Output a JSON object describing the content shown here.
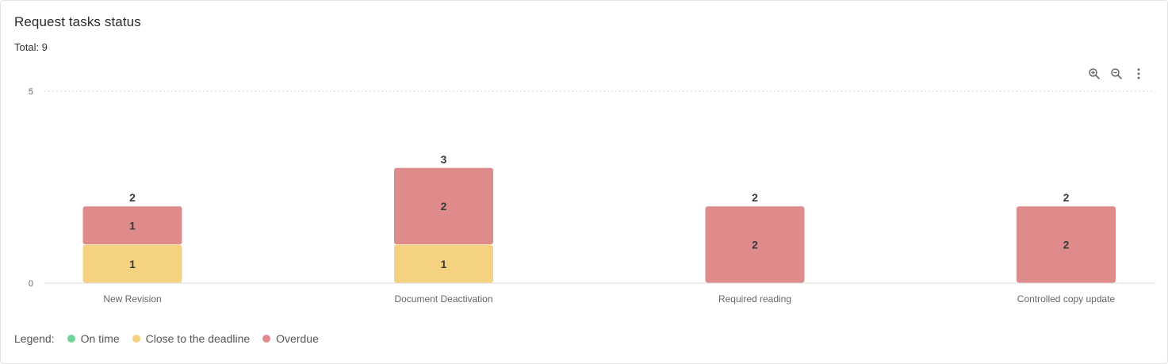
{
  "card": {
    "title": "Request tasks status",
    "total": "Total: 9"
  },
  "toolbar": {
    "zoom_in_icon": "zoom-in-icon",
    "zoom_out_icon": "zoom-out-icon",
    "menu_icon": "more-vert-icon"
  },
  "legend": {
    "title": "Legend:",
    "items": [
      {
        "label": "On time",
        "color": "#6fd49b"
      },
      {
        "label": "Close to the deadline",
        "color": "#f5d27f"
      },
      {
        "label": "Overdue",
        "color": "#e08b8b"
      }
    ]
  },
  "chart_data": {
    "type": "bar",
    "stacked": true,
    "categories": [
      "New Revision",
      "Document Deactivation",
      "Required reading",
      "Controlled copy update"
    ],
    "series": [
      {
        "name": "On time",
        "color": "#6fd49b",
        "values": [
          0,
          0,
          0,
          0
        ]
      },
      {
        "name": "Close to the deadline",
        "color": "#f5d27f",
        "values": [
          1,
          1,
          0,
          0
        ]
      },
      {
        "name": "Overdue",
        "color": "#e08b8b",
        "values": [
          1,
          2,
          2,
          2
        ]
      }
    ],
    "totals": [
      2,
      3,
      2,
      2
    ],
    "yticks": [
      0,
      5
    ],
    "ylim": [
      0,
      5
    ],
    "grid": true,
    "legend_position": "bottom-left"
  }
}
